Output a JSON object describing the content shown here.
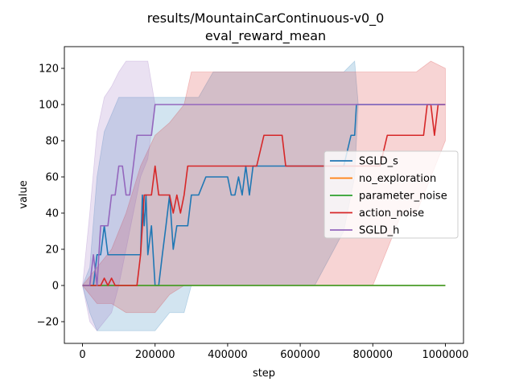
{
  "chart_data": {
    "type": "line",
    "title": [
      "results/MountainCarContinuous-v0_0",
      "eval_reward_mean"
    ],
    "xlabel": "step",
    "ylabel": "value",
    "xlim": [
      -50000,
      1050000
    ],
    "ylim": [
      -32,
      132
    ],
    "xticks": [
      0,
      200000,
      400000,
      600000,
      800000,
      1000000
    ],
    "xtick_labels": [
      "0",
      "200000",
      "400000",
      "600000",
      "800000",
      "1000000"
    ],
    "yticks": [
      -20,
      0,
      20,
      40,
      60,
      80,
      100,
      120
    ],
    "ytick_labels": [
      "−20",
      "0",
      "20",
      "40",
      "60",
      "80",
      "100",
      "120"
    ],
    "grid": false,
    "legend_position": "center-right",
    "series": [
      {
        "name": "SGLD_s",
        "color": "#1f77b4",
        "points": [
          [
            0,
            0
          ],
          [
            10000,
            0
          ],
          [
            20000,
            0
          ],
          [
            30000,
            0
          ],
          [
            40000,
            17
          ],
          [
            50000,
            17
          ],
          [
            60000,
            33
          ],
          [
            70000,
            17
          ],
          [
            80000,
            17
          ],
          [
            90000,
            17
          ],
          [
            100000,
            17
          ],
          [
            110000,
            17
          ],
          [
            120000,
            17
          ],
          [
            130000,
            17
          ],
          [
            140000,
            17
          ],
          [
            150000,
            17
          ],
          [
            160000,
            17
          ],
          [
            165000,
            50
          ],
          [
            170000,
            33
          ],
          [
            175000,
            50
          ],
          [
            180000,
            17
          ],
          [
            190000,
            33
          ],
          [
            200000,
            0
          ],
          [
            210000,
            0
          ],
          [
            220000,
            17
          ],
          [
            230000,
            33
          ],
          [
            240000,
            50
          ],
          [
            250000,
            20
          ],
          [
            260000,
            33
          ],
          [
            270000,
            33
          ],
          [
            280000,
            33
          ],
          [
            290000,
            33
          ],
          [
            300000,
            50
          ],
          [
            320000,
            50
          ],
          [
            340000,
            60
          ],
          [
            360000,
            60
          ],
          [
            380000,
            60
          ],
          [
            400000,
            60
          ],
          [
            410000,
            50
          ],
          [
            420000,
            50
          ],
          [
            430000,
            60
          ],
          [
            440000,
            50
          ],
          [
            450000,
            66
          ],
          [
            460000,
            50
          ],
          [
            470000,
            66
          ],
          [
            480000,
            66
          ],
          [
            500000,
            66
          ],
          [
            510000,
            66
          ],
          [
            520000,
            66
          ],
          [
            530000,
            66
          ],
          [
            540000,
            66
          ],
          [
            560000,
            66
          ],
          [
            580000,
            66
          ],
          [
            600000,
            66
          ],
          [
            620000,
            66
          ],
          [
            640000,
            66
          ],
          [
            660000,
            66
          ],
          [
            680000,
            66
          ],
          [
            700000,
            66
          ],
          [
            720000,
            66
          ],
          [
            740000,
            83
          ],
          [
            750000,
            83
          ],
          [
            755000,
            100
          ],
          [
            760000,
            100
          ],
          [
            800000,
            100
          ],
          [
            850000,
            100
          ],
          [
            900000,
            100
          ],
          [
            950000,
            100
          ],
          [
            1000000,
            100
          ]
        ],
        "band": [
          [
            0,
            0,
            0
          ],
          [
            20000,
            -15,
            10
          ],
          [
            40000,
            -25,
            60
          ],
          [
            60000,
            -25,
            85
          ],
          [
            100000,
            -25,
            104
          ],
          [
            140000,
            -25,
            104
          ],
          [
            160000,
            -25,
            104
          ],
          [
            200000,
            -25,
            104
          ],
          [
            240000,
            -15,
            104
          ],
          [
            280000,
            -15,
            104
          ],
          [
            300000,
            0,
            104
          ],
          [
            320000,
            0,
            104
          ],
          [
            360000,
            0,
            118
          ],
          [
            400000,
            0,
            118
          ],
          [
            440000,
            0,
            118
          ],
          [
            480000,
            0,
            118
          ],
          [
            520000,
            0,
            118
          ],
          [
            560000,
            0,
            118
          ],
          [
            600000,
            0,
            118
          ],
          [
            640000,
            0,
            118
          ],
          [
            680000,
            15,
            118
          ],
          [
            720000,
            30,
            118
          ],
          [
            750000,
            60,
            124
          ],
          [
            760000,
            100,
            100
          ],
          [
            1000000,
            100,
            100
          ]
        ]
      },
      {
        "name": "no_exploration",
        "color": "#ff7f0e",
        "points": [
          [
            0,
            0
          ],
          [
            1000000,
            0
          ]
        ],
        "band": []
      },
      {
        "name": "parameter_noise",
        "color": "#2ca02c",
        "points": [
          [
            0,
            0
          ],
          [
            1000000,
            0
          ]
        ],
        "band": []
      },
      {
        "name": "action_noise",
        "color": "#d62728",
        "points": [
          [
            0,
            0
          ],
          [
            40000,
            0
          ],
          [
            50000,
            0
          ],
          [
            60000,
            4
          ],
          [
            70000,
            0
          ],
          [
            80000,
            4
          ],
          [
            90000,
            0
          ],
          [
            100000,
            0
          ],
          [
            110000,
            0
          ],
          [
            120000,
            0
          ],
          [
            130000,
            0
          ],
          [
            140000,
            0
          ],
          [
            150000,
            0
          ],
          [
            160000,
            17
          ],
          [
            165000,
            33
          ],
          [
            170000,
            50
          ],
          [
            180000,
            50
          ],
          [
            190000,
            50
          ],
          [
            200000,
            66
          ],
          [
            210000,
            50
          ],
          [
            220000,
            50
          ],
          [
            230000,
            50
          ],
          [
            240000,
            50
          ],
          [
            250000,
            40
          ],
          [
            260000,
            50
          ],
          [
            270000,
            40
          ],
          [
            280000,
            50
          ],
          [
            290000,
            66
          ],
          [
            300000,
            66
          ],
          [
            310000,
            66
          ],
          [
            320000,
            66
          ],
          [
            330000,
            66
          ],
          [
            340000,
            66
          ],
          [
            350000,
            66
          ],
          [
            360000,
            66
          ],
          [
            380000,
            66
          ],
          [
            400000,
            66
          ],
          [
            420000,
            66
          ],
          [
            440000,
            66
          ],
          [
            460000,
            66
          ],
          [
            480000,
            66
          ],
          [
            500000,
            83
          ],
          [
            520000,
            83
          ],
          [
            540000,
            83
          ],
          [
            550000,
            83
          ],
          [
            560000,
            66
          ],
          [
            580000,
            66
          ],
          [
            600000,
            66
          ],
          [
            620000,
            66
          ],
          [
            640000,
            66
          ],
          [
            660000,
            66
          ],
          [
            680000,
            66
          ],
          [
            700000,
            66
          ],
          [
            720000,
            66
          ],
          [
            740000,
            66
          ],
          [
            760000,
            66
          ],
          [
            780000,
            66
          ],
          [
            800000,
            66
          ],
          [
            820000,
            66
          ],
          [
            840000,
            83
          ],
          [
            860000,
            83
          ],
          [
            880000,
            83
          ],
          [
            900000,
            83
          ],
          [
            920000,
            83
          ],
          [
            940000,
            83
          ],
          [
            950000,
            100
          ],
          [
            960000,
            100
          ],
          [
            970000,
            83
          ],
          [
            980000,
            100
          ],
          [
            990000,
            100
          ],
          [
            1000000,
            100
          ]
        ],
        "band": [
          [
            0,
            0,
            0
          ],
          [
            40000,
            -10,
            10
          ],
          [
            80000,
            -10,
            20
          ],
          [
            120000,
            -15,
            40
          ],
          [
            160000,
            -15,
            66
          ],
          [
            200000,
            -15,
            83
          ],
          [
            240000,
            -5,
            90
          ],
          [
            280000,
            0,
            100
          ],
          [
            300000,
            0,
            118
          ],
          [
            340000,
            0,
            118
          ],
          [
            400000,
            0,
            118
          ],
          [
            500000,
            0,
            118
          ],
          [
            600000,
            0,
            118
          ],
          [
            700000,
            0,
            118
          ],
          [
            800000,
            0,
            118
          ],
          [
            840000,
            20,
            118
          ],
          [
            880000,
            40,
            118
          ],
          [
            920000,
            40,
            118
          ],
          [
            960000,
            60,
            124
          ],
          [
            1000000,
            80,
            120
          ]
        ]
      },
      {
        "name": "SGLD_h",
        "color": "#9467bd",
        "points": [
          [
            0,
            0
          ],
          [
            20000,
            0
          ],
          [
            30000,
            17
          ],
          [
            40000,
            0
          ],
          [
            50000,
            33
          ],
          [
            60000,
            33
          ],
          [
            70000,
            33
          ],
          [
            80000,
            50
          ],
          [
            90000,
            50
          ],
          [
            100000,
            66
          ],
          [
            110000,
            66
          ],
          [
            120000,
            50
          ],
          [
            130000,
            50
          ],
          [
            140000,
            66
          ],
          [
            150000,
            83
          ],
          [
            160000,
            83
          ],
          [
            170000,
            83
          ],
          [
            180000,
            83
          ],
          [
            190000,
            83
          ],
          [
            200000,
            100
          ],
          [
            300000,
            100
          ],
          [
            400000,
            100
          ],
          [
            500000,
            100
          ],
          [
            600000,
            100
          ],
          [
            700000,
            100
          ],
          [
            800000,
            100
          ],
          [
            900000,
            100
          ],
          [
            1000000,
            100
          ]
        ],
        "band": [
          [
            0,
            0,
            0
          ],
          [
            20000,
            -20,
            40
          ],
          [
            40000,
            -25,
            85
          ],
          [
            60000,
            -20,
            104
          ],
          [
            80000,
            -15,
            110
          ],
          [
            100000,
            0,
            118
          ],
          [
            120000,
            20,
            124
          ],
          [
            140000,
            40,
            124
          ],
          [
            160000,
            60,
            124
          ],
          [
            180000,
            70,
            124
          ],
          [
            200000,
            100,
            100
          ],
          [
            1000000,
            100,
            100
          ]
        ]
      }
    ]
  }
}
